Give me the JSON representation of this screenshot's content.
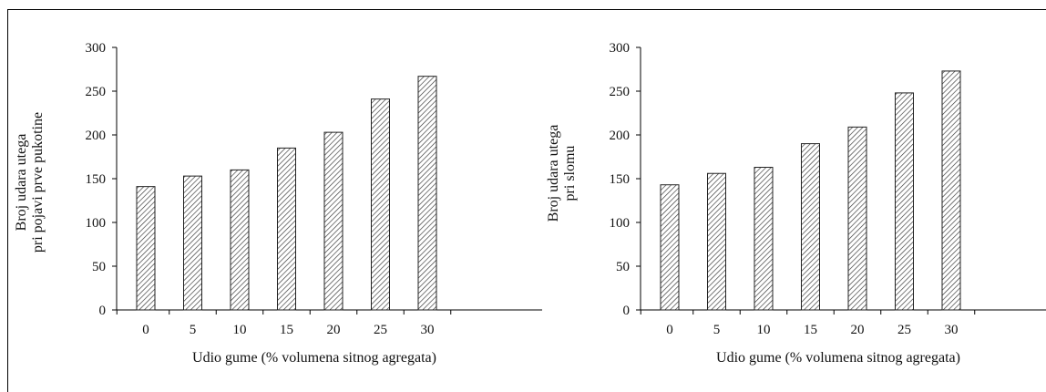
{
  "chart_data": [
    {
      "type": "bar",
      "categories": [
        "0",
        "5",
        "10",
        "15",
        "20",
        "25",
        "30"
      ],
      "values": [
        141,
        153,
        160,
        185,
        203,
        241,
        267
      ],
      "ylabel_lines": [
        "Broj udara utega",
        "pri pojavi prve pukotine"
      ],
      "xlabel": "Udio gume (% volumena sitnog agregata)",
      "ylim": [
        0,
        300
      ],
      "yticks": [
        "0",
        "50",
        "100",
        "150",
        "200",
        "250",
        "300"
      ],
      "grid": false,
      "bar_fill": "hatched"
    },
    {
      "type": "bar",
      "categories": [
        "0",
        "5",
        "10",
        "15",
        "20",
        "25",
        "30"
      ],
      "values": [
        143,
        156,
        163,
        190,
        209,
        248,
        273
      ],
      "ylabel_lines": [
        "Broj udara utega",
        "pri slomu"
      ],
      "xlabel": "Udio gume (% volumena sitnog agregata)",
      "ylim": [
        0,
        300
      ],
      "yticks": [
        "0",
        "50",
        "100",
        "150",
        "200",
        "250",
        "300"
      ],
      "grid": false,
      "bar_fill": "hatched"
    }
  ]
}
